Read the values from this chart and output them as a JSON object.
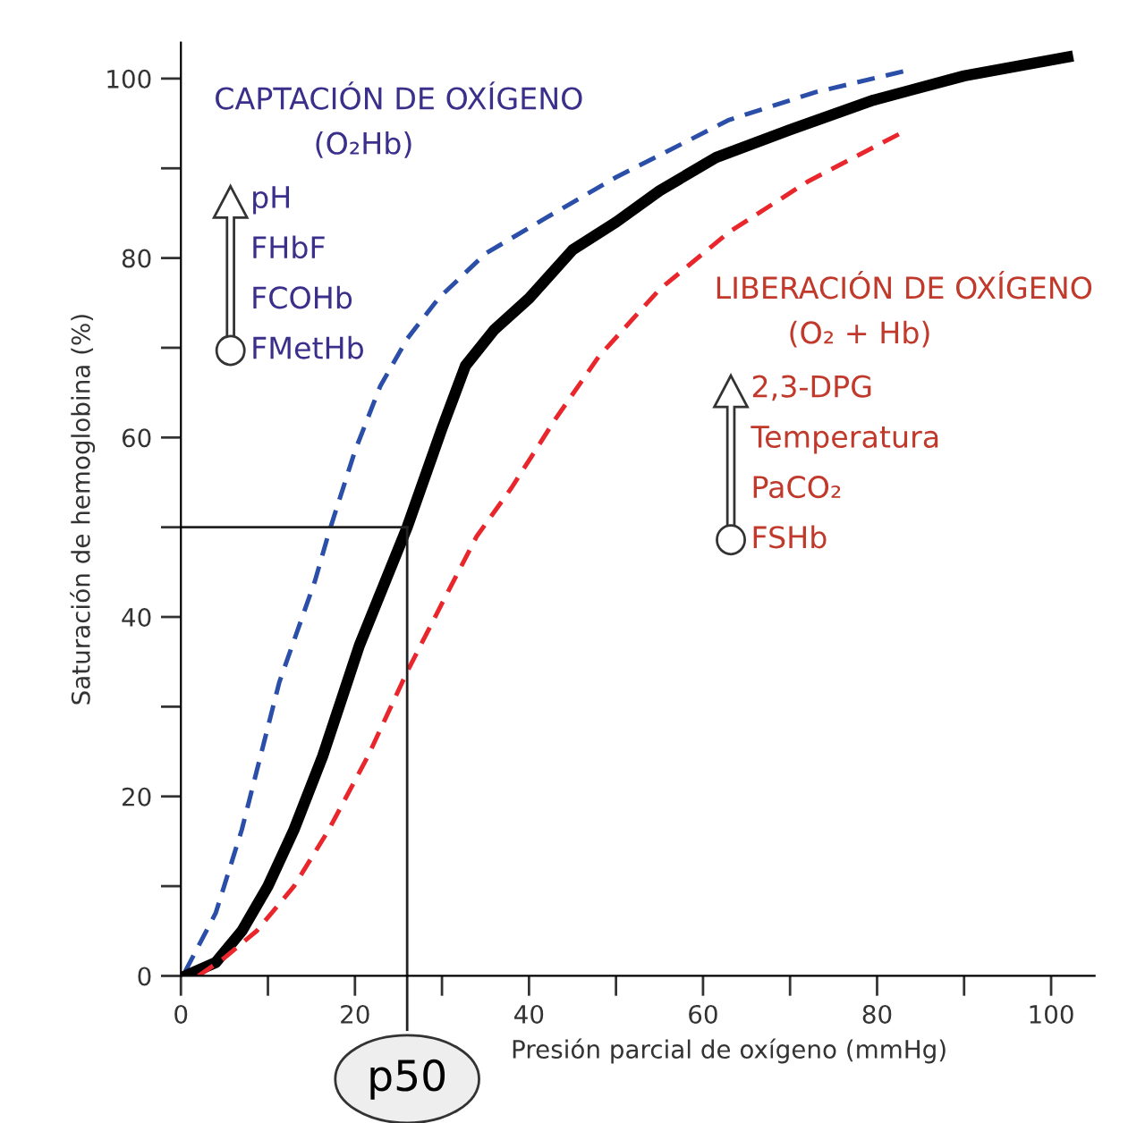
{
  "chart_data": {
    "type": "line",
    "xlabel": "Presión parcial de oxígeno (mmHg)",
    "ylabel": "Saturación de hemoglobina (%)",
    "xlim": [
      0,
      105
    ],
    "ylim": [
      0,
      104
    ],
    "xticks": [
      0,
      {
        "value": 10,
        "label": null
      },
      20,
      {
        "value": 30,
        "label": null
      },
      40,
      {
        "value": 50,
        "label": null
      },
      60,
      {
        "value": 70,
        "label": null
      },
      80,
      {
        "value": 90,
        "label": null
      },
      100
    ],
    "yticks": [
      0,
      {
        "value": 10,
        "label": null
      },
      20,
      {
        "value": 30,
        "label": null
      },
      40,
      {
        "value": 50,
        "label": null
      },
      60,
      {
        "value": 70,
        "label": null
      },
      80,
      {
        "value": 90,
        "label": null
      },
      100
    ],
    "grid": false,
    "marker": "none",
    "series": [
      {
        "color": "#2b4fa8",
        "line_style": "dashed",
        "x": [
          0.5,
          4,
          7,
          11.3,
          15.4,
          17,
          20,
          22.9,
          26,
          29.6,
          35,
          42,
          50,
          63,
          73,
          83
        ],
        "values": [
          0.5,
          7,
          16.3,
          32.7,
          44,
          49.4,
          58.5,
          65.7,
          71,
          75.5,
          80.5,
          84.5,
          89,
          95.4,
          98.5,
          100.8
        ]
      },
      {
        "color": "#000000",
        "line_style": "solid",
        "x": [
          0.5,
          4,
          7,
          10,
          13,
          16.3,
          20.5,
          26,
          30,
          32.7,
          36,
          40,
          45,
          50,
          55,
          61.5,
          70,
          79.6,
          90,
          101.9
        ],
        "values": [
          0,
          1.5,
          5,
          10,
          16.3,
          24.5,
          36.8,
          50,
          61,
          68,
          72,
          75.5,
          80.9,
          84,
          87.5,
          91.2,
          94.3,
          97.6,
          100.3,
          102.4
        ]
      },
      {
        "color": "#e8262b",
        "line_style": "dashed",
        "x": [
          2,
          5,
          8.7,
          13,
          17,
          21.5,
          26,
          30,
          34,
          38,
          43,
          48,
          55,
          63,
          72,
          82.5
        ],
        "values": [
          0,
          2,
          5,
          10,
          16.3,
          24.5,
          33.9,
          41.5,
          49,
          54.4,
          62,
          69,
          76.5,
          82.9,
          88.5,
          93.8
        ]
      }
    ],
    "ref_lines": [
      {
        "axis": "x",
        "value": 26,
        "label": "p50"
      },
      {
        "axis": "y",
        "value": 50
      }
    ],
    "annotations": [
      "CAPTACIÓN DE OXÍGENO",
      "(O₂Hb)",
      "pH",
      "FHbF",
      "FCOHb",
      "FMetHb",
      "LIBERACIÓN DE OXÍGENO",
      "(O₂ + Hb)",
      "2,3-DPG",
      "Temperatura",
      "PaCO₂",
      "FSHb"
    ]
  }
}
